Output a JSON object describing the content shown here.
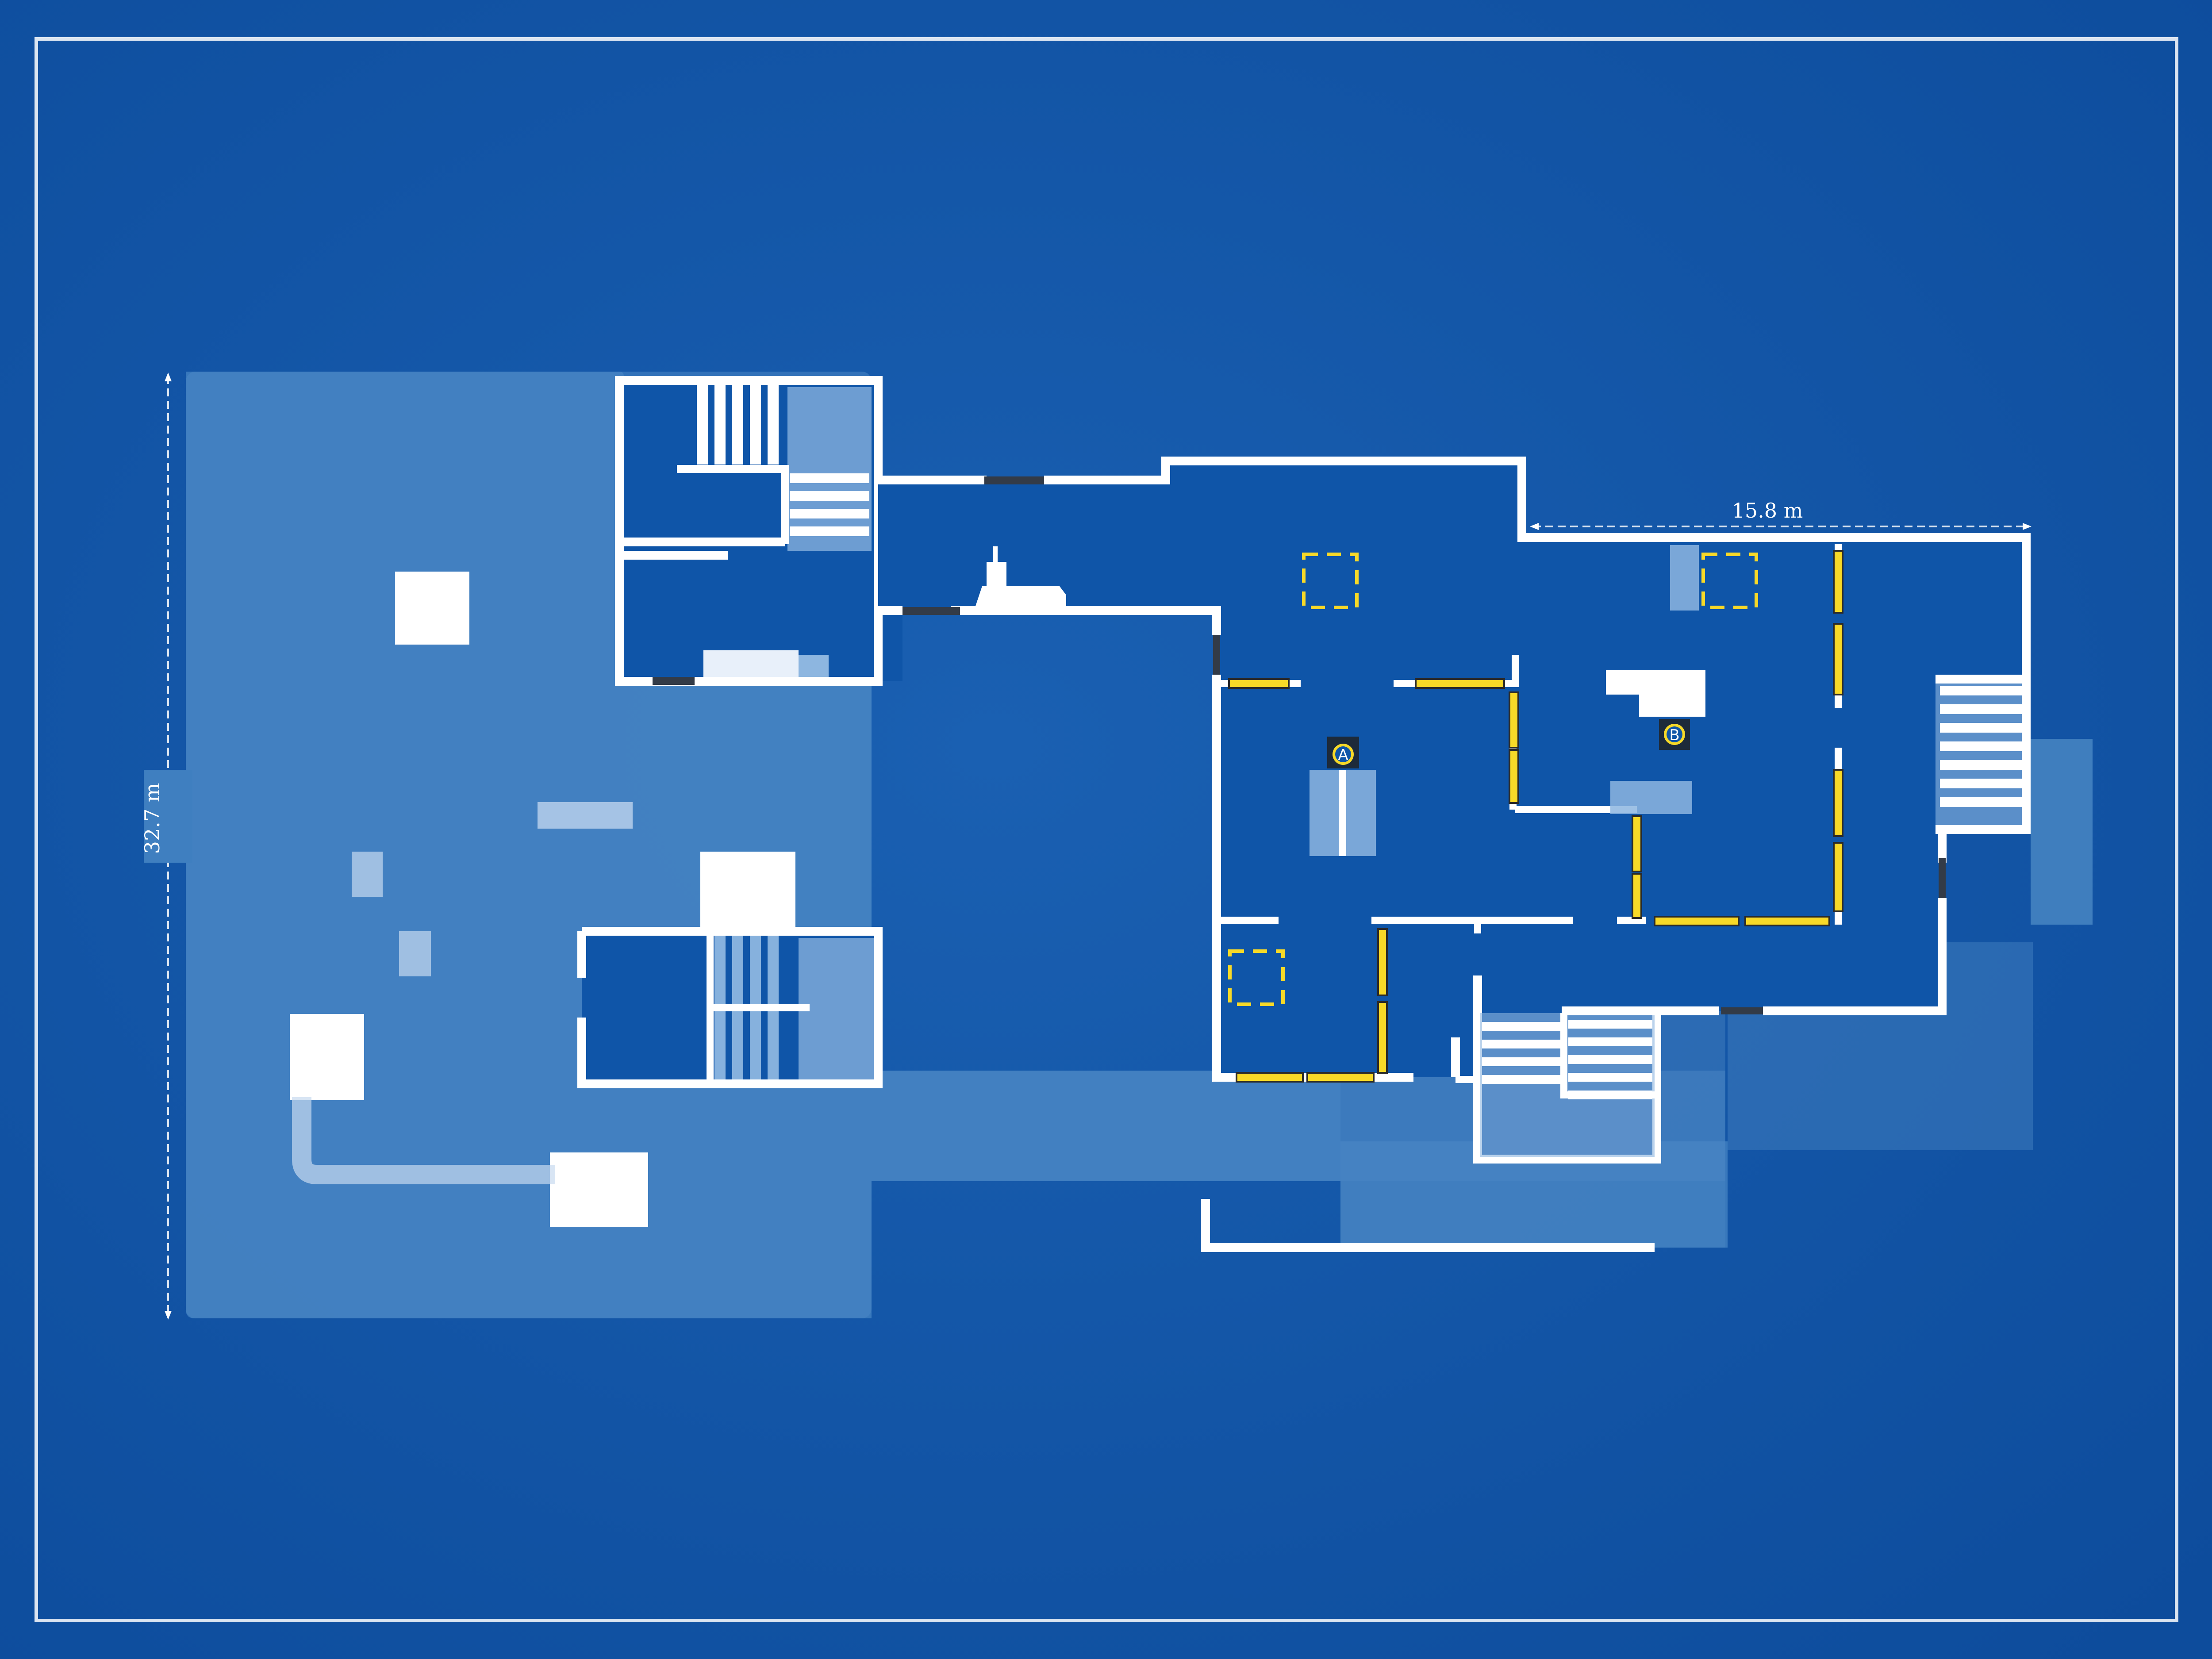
{
  "colors": {
    "background": "#0f55a8",
    "background_light": "#2f71b7",
    "outdoor_area": "#3f7fc0",
    "wall": "#ffffff",
    "objective_yellow": "#f7d928",
    "doorway_dark": "#333b47",
    "glass_fill": "#8db6e0"
  },
  "dimensions": {
    "horizontal_label": "15.8 m",
    "vertical_label": "32.7 m"
  },
  "bomb_sites": [
    {
      "label": "A"
    },
    {
      "label": "B"
    }
  ],
  "icons": {
    "bomb_site_marker": "circle-letter-marker-icon",
    "spawn_zone": "dashed-square-icon",
    "stairs": "stairs-icon",
    "boat": "boat-icon"
  }
}
